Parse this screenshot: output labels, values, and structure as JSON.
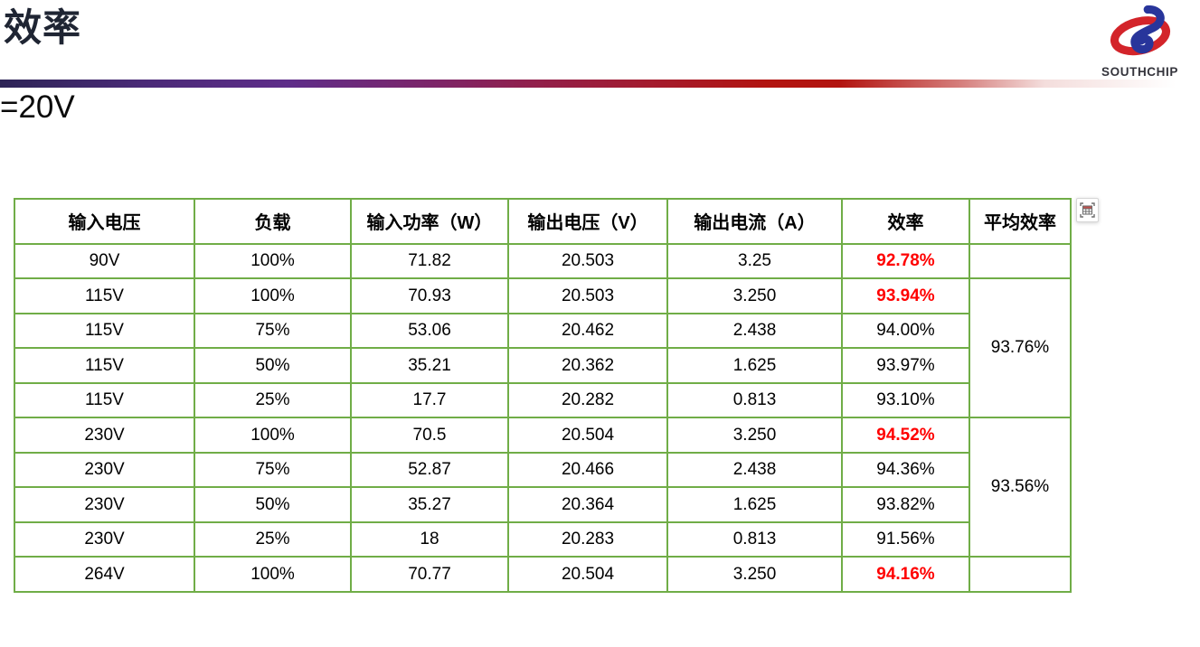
{
  "header": {
    "title": "效率",
    "subtitle": "=20V",
    "logo_text": "SOUTHCHIP"
  },
  "icons": {
    "table_tool": "table-selection-icon",
    "logo_mark": "southchip-logo-mark"
  },
  "colors": {
    "table_border": "#70ad47",
    "highlight_red": "#ff0000",
    "title_color": "#1f2533",
    "logo_red": "#d3242a",
    "logo_blue": "#28359b",
    "gradient_start": "#2d2456",
    "gradient_purple": "#5e2d89",
    "gradient_crimson": "#90204d",
    "gradient_red": "#b21410"
  },
  "table": {
    "headers": [
      "输入电压",
      "负载",
      "输入功率（W）",
      "输出电压（V）",
      "输出电流（A）",
      "效率",
      "平均效率"
    ],
    "rows": [
      {
        "cells": [
          "90V",
          "100%",
          "71.82",
          "20.503",
          "3.25",
          "92.78%"
        ],
        "efficiency_red": true,
        "avg": {
          "value": "",
          "rowspan": 1
        }
      },
      {
        "cells": [
          "115V",
          "100%",
          "70.93",
          "20.503",
          "3.250",
          "93.94%"
        ],
        "efficiency_red": true,
        "avg": {
          "value": "93.76%",
          "rowspan": 4
        }
      },
      {
        "cells": [
          "115V",
          "75%",
          "53.06",
          "20.462",
          "2.438",
          "94.00%"
        ],
        "efficiency_red": false
      },
      {
        "cells": [
          "115V",
          "50%",
          "35.21",
          "20.362",
          "1.625",
          "93.97%"
        ],
        "efficiency_red": false
      },
      {
        "cells": [
          "115V",
          "25%",
          "17.7",
          "20.282",
          "0.813",
          "93.10%"
        ],
        "efficiency_red": false
      },
      {
        "cells": [
          "230V",
          "100%",
          "70.5",
          "20.504",
          "3.250",
          "94.52%"
        ],
        "efficiency_red": true,
        "avg": {
          "value": "93.56%",
          "rowspan": 4
        }
      },
      {
        "cells": [
          "230V",
          "75%",
          "52.87",
          "20.466",
          "2.438",
          "94.36%"
        ],
        "efficiency_red": false
      },
      {
        "cells": [
          "230V",
          "50%",
          "35.27",
          "20.364",
          "1.625",
          "93.82%"
        ],
        "efficiency_red": false
      },
      {
        "cells": [
          "230V",
          "25%",
          "18",
          "20.283",
          "0.813",
          "91.56%"
        ],
        "efficiency_red": false
      },
      {
        "cells": [
          "264V",
          "100%",
          "70.77",
          "20.504",
          "3.250",
          "94.16%"
        ],
        "efficiency_red": true,
        "avg": {
          "value": "",
          "rowspan": 1
        }
      }
    ]
  },
  "chart_data": {
    "type": "table",
    "title": "效率 =20V",
    "columns": [
      "输入电压",
      "负载",
      "输入功率（W）",
      "输出电压（V）",
      "输出电流（A）",
      "效率",
      "平均效率"
    ],
    "rows": [
      [
        "90V",
        "100%",
        71.82,
        20.503,
        3.25,
        "92.78%",
        ""
      ],
      [
        "115V",
        "100%",
        70.93,
        20.503,
        3.25,
        "93.94%",
        "93.76%"
      ],
      [
        "115V",
        "75%",
        53.06,
        20.462,
        2.438,
        "94.00%",
        "93.76%"
      ],
      [
        "115V",
        "50%",
        35.21,
        20.362,
        1.625,
        "93.97%",
        "93.76%"
      ],
      [
        "115V",
        "25%",
        17.7,
        20.282,
        0.813,
        "93.10%",
        "93.76%"
      ],
      [
        "230V",
        "100%",
        70.5,
        20.504,
        3.25,
        "94.52%",
        "93.56%"
      ],
      [
        "230V",
        "75%",
        52.87,
        20.466,
        2.438,
        "94.36%",
        "93.56%"
      ],
      [
        "230V",
        "50%",
        35.27,
        20.364,
        1.625,
        "93.82%",
        "93.56%"
      ],
      [
        "230V",
        "25%",
        18,
        20.283,
        0.813,
        "91.56%",
        "93.56%"
      ],
      [
        "264V",
        "100%",
        70.77,
        20.504,
        3.25,
        "94.16%",
        ""
      ]
    ],
    "average_efficiency": {
      "115V_group": "93.76%",
      "230V_group": "93.56%"
    },
    "red_highlighted_efficiency": [
      "92.78%",
      "93.94%",
      "94.52%",
      "94.16%"
    ]
  }
}
